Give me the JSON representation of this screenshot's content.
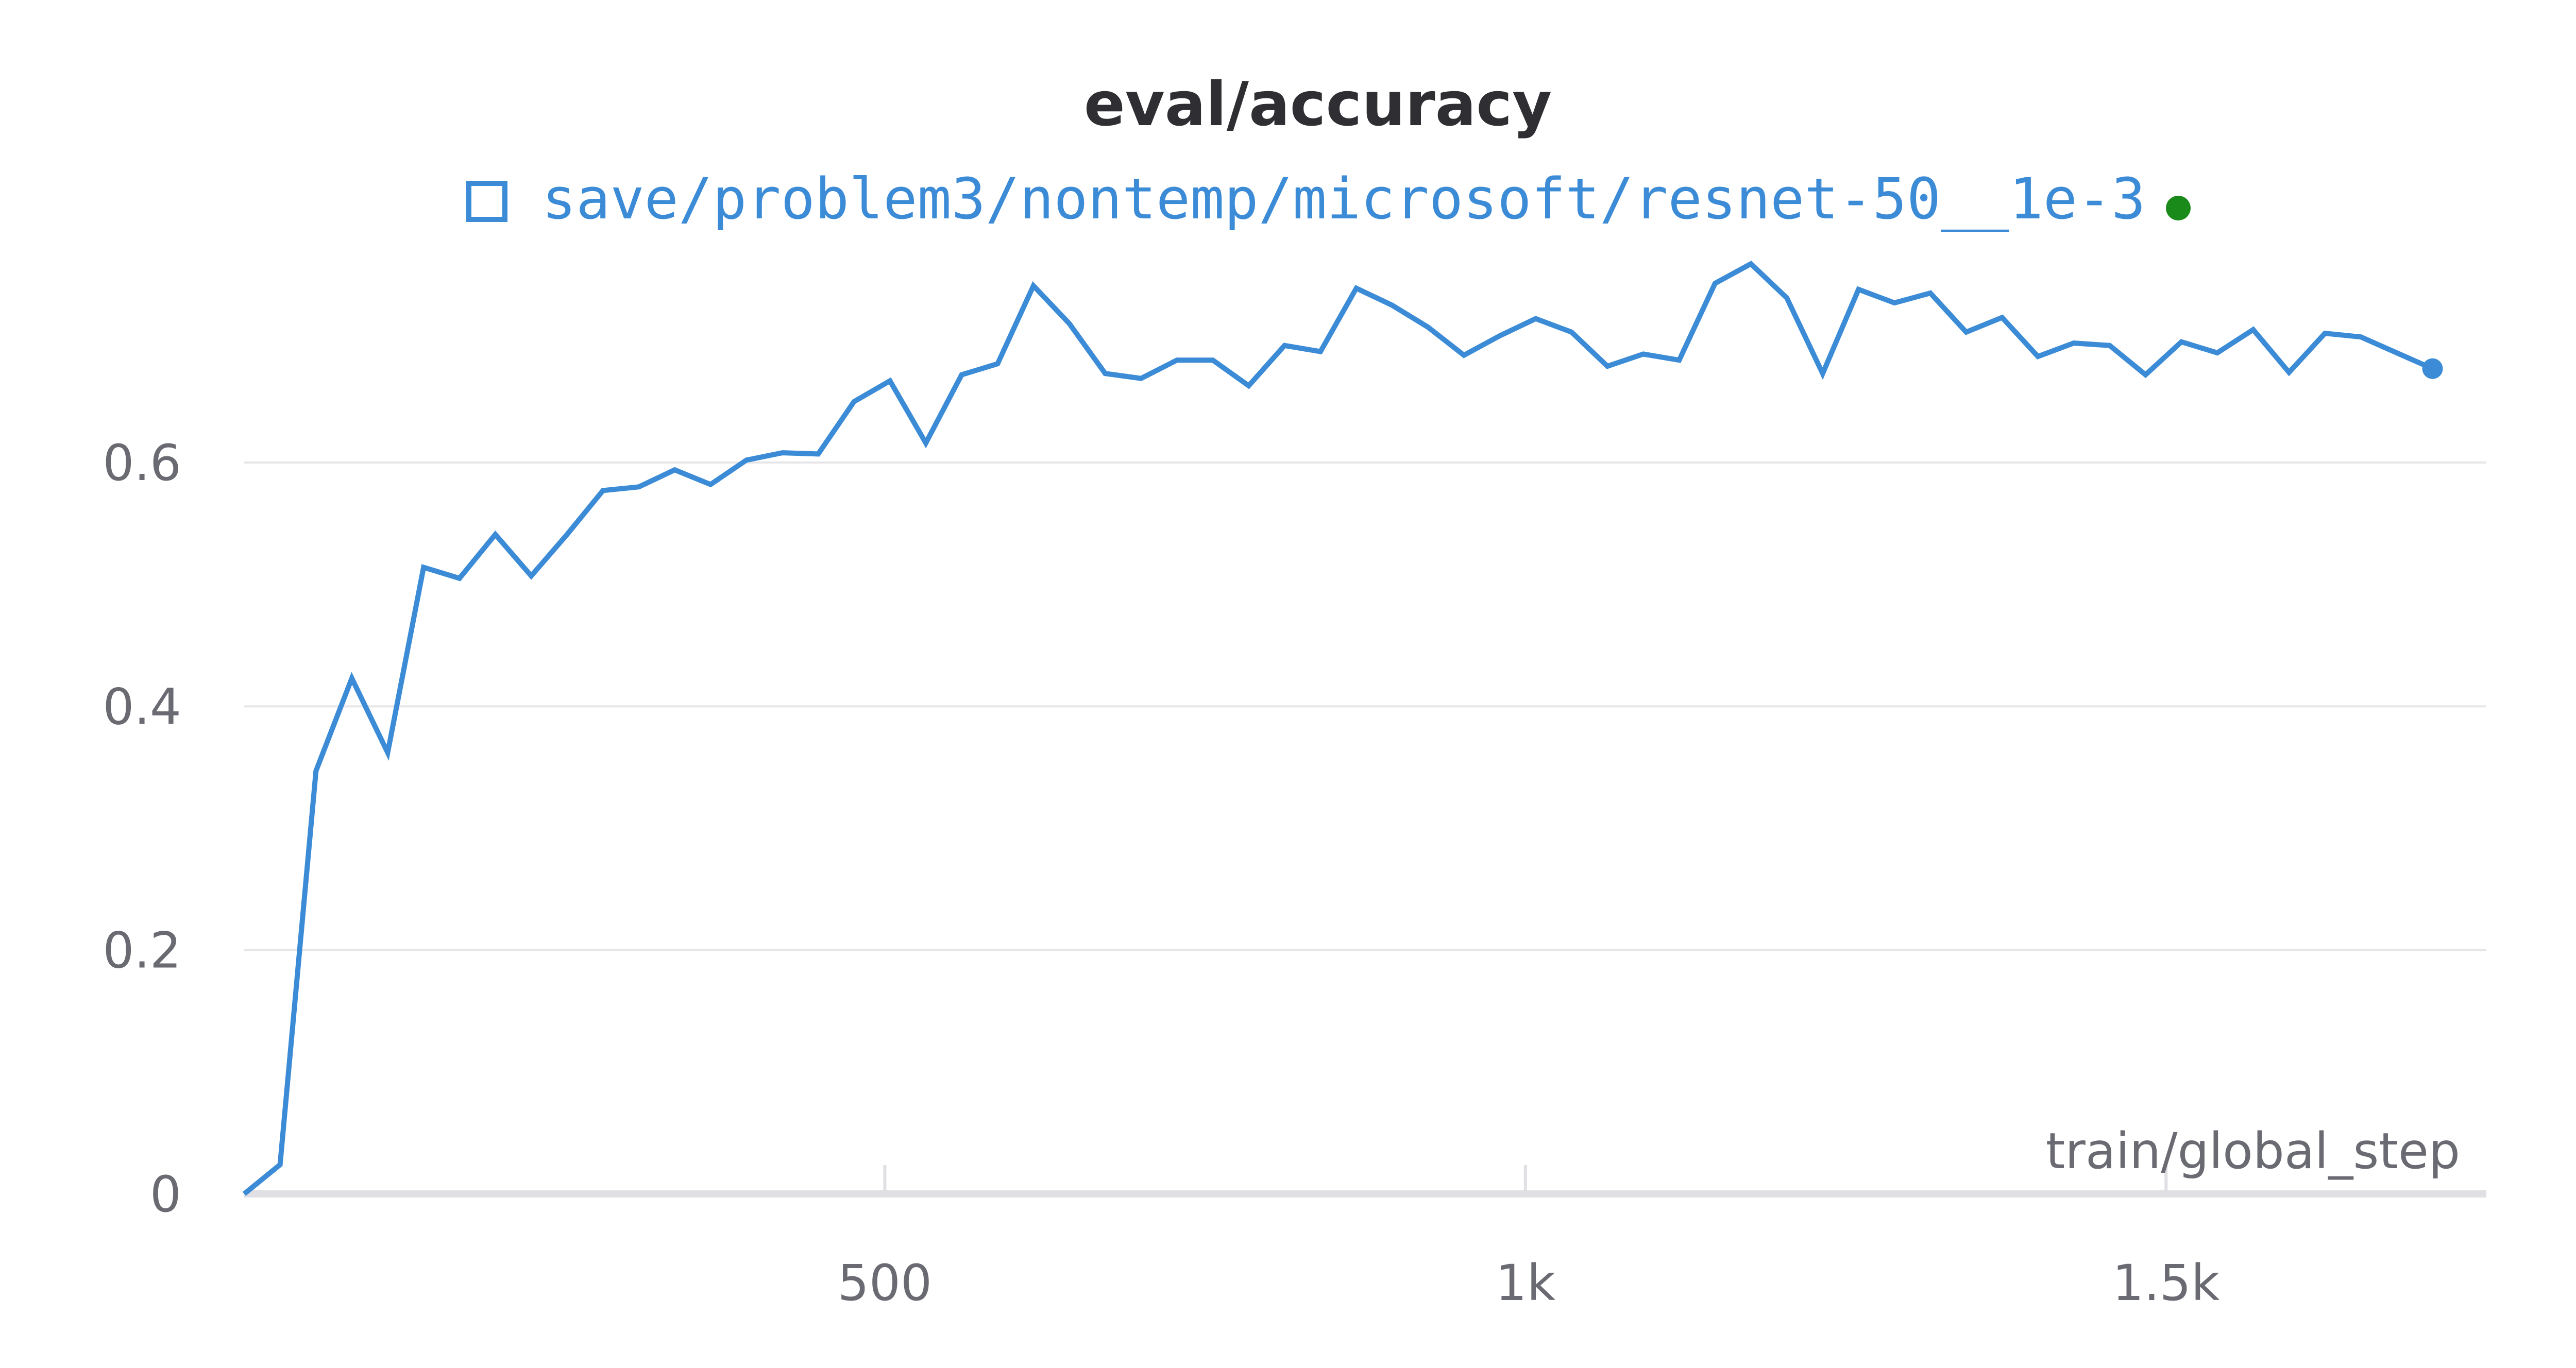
{
  "colors": {
    "series": "#3b8bd6",
    "status_dot": "#1a8a1a",
    "grid": "#e6e6e9",
    "axis": "#e0e0e4",
    "text": "#2f2f33",
    "tick_text": "#6a6a72"
  },
  "legend": {
    "icon": "square-outline-icon",
    "status_icon": "status-dot-icon"
  },
  "chart_data": {
    "type": "line",
    "title": "eval/accuracy",
    "xlabel": "train/global_step",
    "ylabel": "",
    "xlim": [
      0,
      1750
    ],
    "ylim": [
      0,
      0.8
    ],
    "x_ticks": [
      500,
      1000,
      1500
    ],
    "x_tick_labels": [
      "500",
      "1k",
      "1.5k"
    ],
    "y_ticks": [
      0,
      0.2,
      0.4,
      0.6
    ],
    "y_tick_labels": [
      "0",
      "0.2",
      "0.4",
      "0.6"
    ],
    "grid": true,
    "legend_position": "top-center",
    "series": [
      {
        "name": "save/problem3/nontemp/microsoft/resnet-50__1e-3",
        "x": [
          0,
          28,
          56,
          84,
          112,
          140,
          168,
          196,
          224,
          252,
          280,
          308,
          336,
          364,
          392,
          420,
          448,
          476,
          504,
          532,
          560,
          588,
          616,
          644,
          672,
          700,
          728,
          756,
          784,
          812,
          840,
          868,
          896,
          924,
          952,
          980,
          1008,
          1036,
          1064,
          1092,
          1120,
          1148,
          1176,
          1204,
          1232,
          1260,
          1288,
          1316,
          1344,
          1372,
          1400,
          1428,
          1456,
          1484,
          1512,
          1540,
          1568,
          1596,
          1624,
          1652,
          1680,
          1708
        ],
        "y": [
          0.0,
          0.024,
          0.347,
          0.423,
          0.362,
          0.514,
          0.505,
          0.541,
          0.507,
          0.541,
          0.577,
          0.58,
          0.594,
          0.582,
          0.602,
          0.608,
          0.607,
          0.65,
          0.667,
          0.616,
          0.672,
          0.681,
          0.745,
          0.714,
          0.673,
          0.669,
          0.684,
          0.684,
          0.663,
          0.696,
          0.691,
          0.743,
          0.729,
          0.711,
          0.688,
          0.704,
          0.718,
          0.707,
          0.679,
          0.689,
          0.684,
          0.747,
          0.763,
          0.735,
          0.673,
          0.742,
          0.731,
          0.739,
          0.707,
          0.719,
          0.687,
          0.698,
          0.696,
          0.672,
          0.699,
          0.69,
          0.709,
          0.674,
          0.706,
          0.703,
          0.69,
          0.677
        ]
      }
    ]
  }
}
